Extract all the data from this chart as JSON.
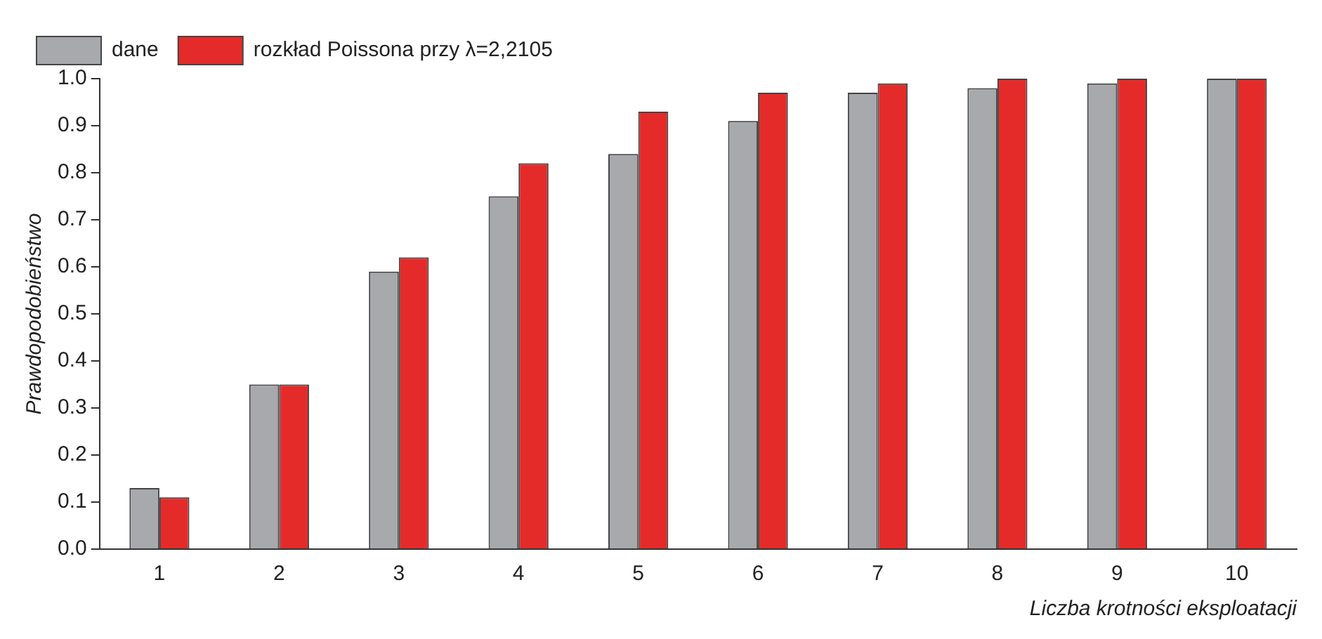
{
  "chart_data": {
    "type": "bar",
    "xlabel": "Liczba krotności eksploatacji",
    "ylabel": "Prawdopodobieństwo",
    "categories": [
      "1",
      "2",
      "3",
      "4",
      "5",
      "6",
      "7",
      "8",
      "9",
      "10"
    ],
    "series": [
      {
        "name": "dane",
        "color": "#a7a9ac",
        "values": [
          0.13,
          0.35,
          0.59,
          0.75,
          0.84,
          0.91,
          0.97,
          0.98,
          0.99,
          1.0
        ]
      },
      {
        "name": "rozkład Poissona przy λ=2,2105",
        "color": "#e42b2a",
        "values": [
          0.11,
          0.35,
          0.62,
          0.82,
          0.93,
          0.97,
          0.99,
          1.0,
          1.0,
          1.0
        ]
      }
    ],
    "ylim": [
      0,
      1
    ],
    "yticks": [
      {
        "value": 0,
        "label": "0.0"
      },
      0.1,
      0.2,
      0.3,
      0.4,
      0.5,
      0.6,
      0.7,
      0.8,
      0.9,
      {
        "value": 1,
        "label": "1.0"
      }
    ],
    "grid": false,
    "legend": "top left"
  }
}
